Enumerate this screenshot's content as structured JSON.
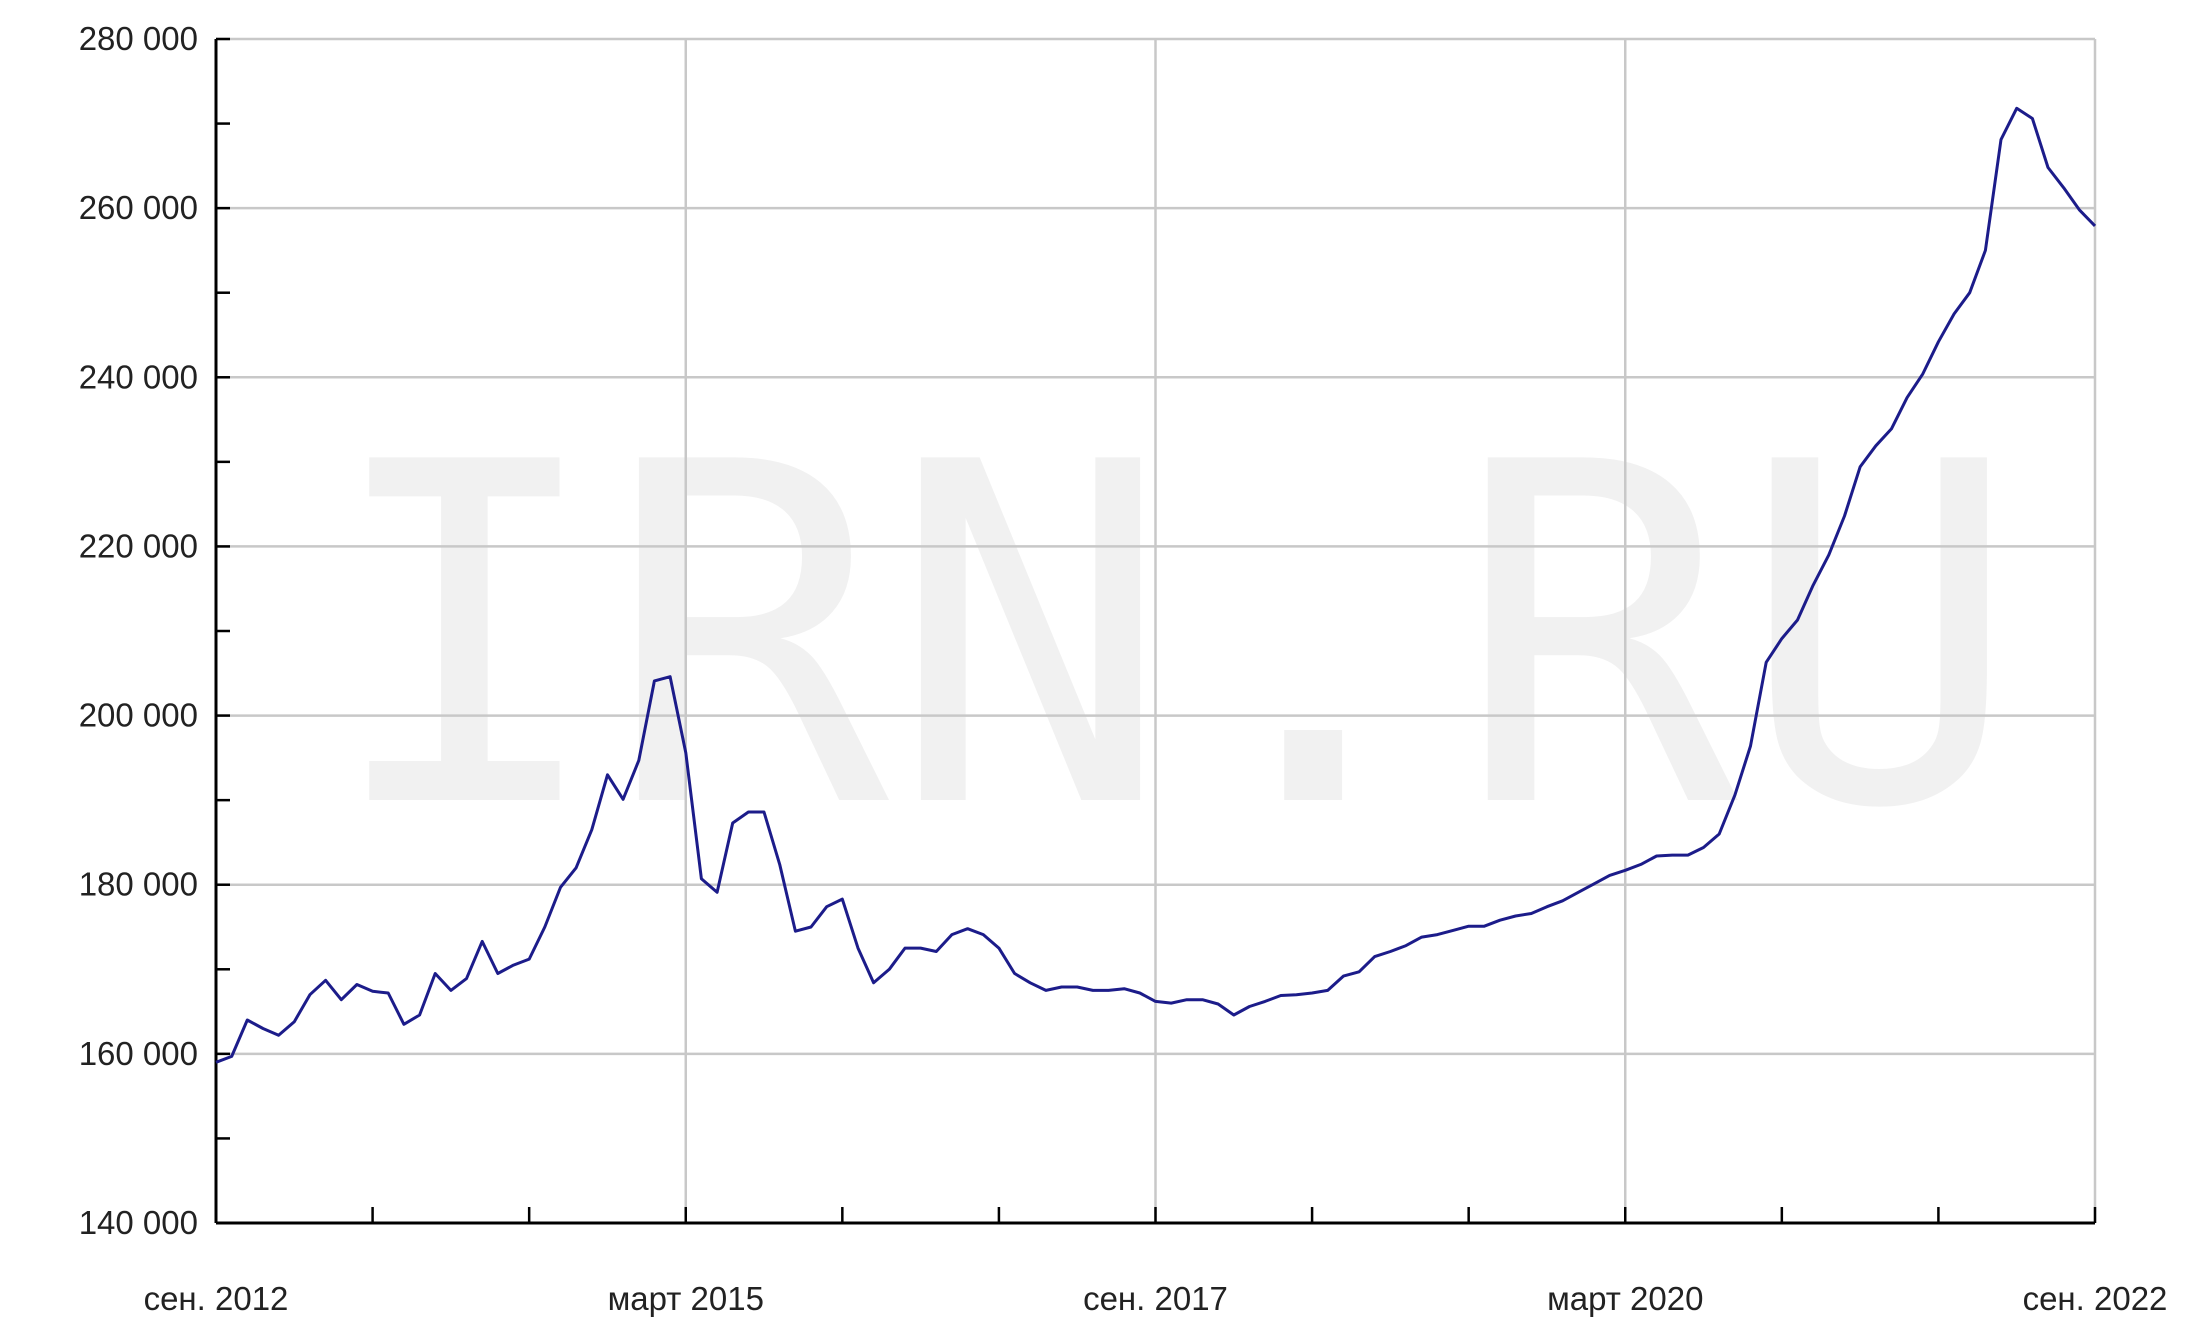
{
  "chart_data": {
    "type": "line",
    "watermark": "IRN.RU",
    "x": [
      "2012-09",
      "2012-10",
      "2012-11",
      "2012-12",
      "2013-01",
      "2013-02",
      "2013-03",
      "2013-04",
      "2013-05",
      "2013-06",
      "2013-07",
      "2013-08",
      "2013-09",
      "2013-10",
      "2013-11",
      "2013-12",
      "2014-01",
      "2014-02",
      "2014-03",
      "2014-04",
      "2014-05",
      "2014-06",
      "2014-07",
      "2014-08",
      "2014-09",
      "2014-10",
      "2014-11",
      "2014-12",
      "2015-01",
      "2015-02",
      "2015-03",
      "2015-04",
      "2015-05",
      "2015-06",
      "2015-07",
      "2015-08",
      "2015-09",
      "2015-10",
      "2015-11",
      "2015-12",
      "2016-01",
      "2016-02",
      "2016-03",
      "2016-04",
      "2016-05",
      "2016-06",
      "2016-07",
      "2016-08",
      "2016-09",
      "2016-10",
      "2016-11",
      "2016-12",
      "2017-01",
      "2017-02",
      "2017-03",
      "2017-04",
      "2017-05",
      "2017-06",
      "2017-07",
      "2017-08",
      "2017-09",
      "2017-10",
      "2017-11",
      "2017-12",
      "2018-01",
      "2018-02",
      "2018-03",
      "2018-04",
      "2018-05",
      "2018-06",
      "2018-07",
      "2018-08",
      "2018-09",
      "2018-10",
      "2018-11",
      "2018-12",
      "2019-01",
      "2019-02",
      "2019-03",
      "2019-04",
      "2019-05",
      "2019-06",
      "2019-07",
      "2019-08",
      "2019-09",
      "2019-10",
      "2019-11",
      "2019-12",
      "2020-01",
      "2020-02",
      "2020-03",
      "2020-04",
      "2020-05",
      "2020-06",
      "2020-07",
      "2020-08",
      "2020-09",
      "2020-10",
      "2020-11",
      "2020-12",
      "2021-01",
      "2021-02",
      "2021-03",
      "2021-04",
      "2021-05",
      "2021-06",
      "2021-07",
      "2021-08",
      "2021-09",
      "2021-10",
      "2021-11",
      "2021-12",
      "2022-01",
      "2022-02",
      "2022-03",
      "2022-04",
      "2022-05",
      "2022-06",
      "2022-07",
      "2022-08",
      "2022-09"
    ],
    "series": [
      {
        "color": "#1c1c8a",
        "values": [
          159000,
          159700,
          164000,
          163000,
          162200,
          163800,
          167000,
          168700,
          166400,
          168200,
          167400,
          167200,
          163500,
          164600,
          169500,
          167500,
          168900,
          173300,
          169500,
          170500,
          171200,
          175000,
          179700,
          182000,
          186500,
          193000,
          190100,
          194700,
          204100,
          204600,
          195600,
          180700,
          179100,
          187300,
          188600,
          188600,
          182400,
          174500,
          175000,
          177400,
          178300,
          172500,
          168400,
          170000,
          172500,
          172500,
          172100,
          174100,
          174800,
          174100,
          172500,
          169500,
          168400,
          167500,
          167900,
          167900,
          167500,
          167500,
          167700,
          167200,
          166200,
          166000,
          166400,
          166400,
          165900,
          164600,
          165600,
          166200,
          166900,
          167000,
          167200,
          167500,
          169200,
          169700,
          171500,
          172100,
          172800,
          173800,
          174100,
          174600,
          175100,
          175100,
          175800,
          176300,
          176600,
          177400,
          178100,
          179100,
          180100,
          181100,
          181700,
          182400,
          183400,
          183500,
          183500,
          184400,
          186000,
          190600,
          196400,
          206300,
          209100,
          211300,
          215400,
          219000,
          223600,
          229400,
          231900,
          233900,
          237600,
          240400,
          244200,
          247500,
          250000,
          255000,
          268100,
          271800,
          270600,
          264800,
          262400,
          259800,
          257900
        ]
      }
    ],
    "xticks": [
      {
        "value": "2012-09",
        "label": "сен. 2012"
      },
      {
        "value": "2015-03",
        "label": "март 2015"
      },
      {
        "value": "2017-09",
        "label": "сен. 2017"
      },
      {
        "value": "2020-03",
        "label": "март 2020"
      },
      {
        "value": "2022-09",
        "label": "сен. 2022"
      }
    ],
    "xminorticks": [
      "2013-07",
      "2014-05",
      "2016-01",
      "2016-11",
      "2018-07",
      "2019-05",
      "2021-01",
      "2021-11"
    ],
    "ylim": [
      140000,
      280000
    ],
    "yticks": [
      {
        "value": 140000,
        "label": "140 000"
      },
      {
        "value": 160000,
        "label": "160 000"
      },
      {
        "value": 180000,
        "label": "180 000"
      },
      {
        "value": 200000,
        "label": "200 000"
      },
      {
        "value": 220000,
        "label": "220 000"
      },
      {
        "value": 240000,
        "label": "240 000"
      },
      {
        "value": 260000,
        "label": "260 000"
      },
      {
        "value": 280000,
        "label": "280 000"
      }
    ],
    "yminorticks": [
      150000,
      170000,
      190000,
      210000,
      230000,
      250000,
      270000
    ],
    "grid": true
  }
}
